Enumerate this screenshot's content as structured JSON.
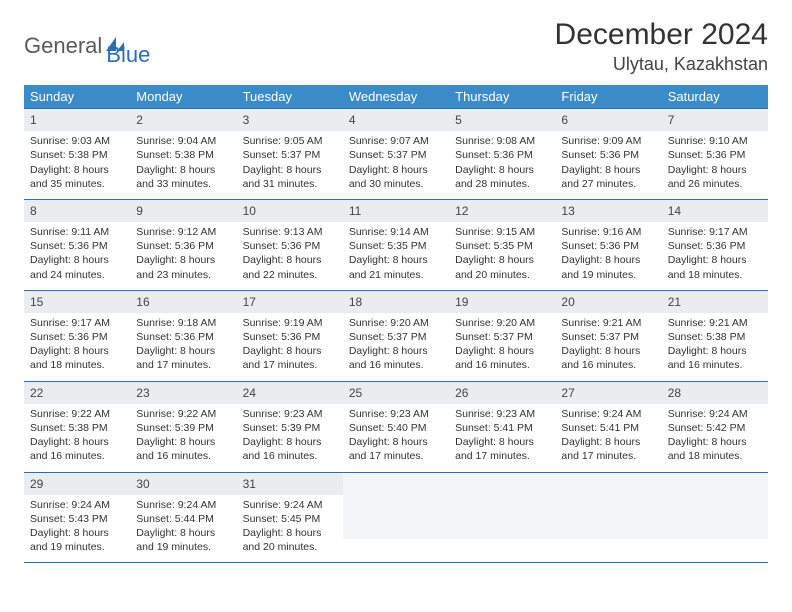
{
  "brand": {
    "part1": "General",
    "part2": "Blue"
  },
  "title": "December 2024",
  "location": "Ulytau, Kazakhstan",
  "colors": {
    "header_bg": "#3b8bc9",
    "header_text": "#ffffff",
    "row_border": "#2a6fb5",
    "daynum_bg": "#e9edf0",
    "page_bg": "#ffffff",
    "body_text": "#333333",
    "logo_gray": "#5a5a5a",
    "logo_blue": "#2a6fb5"
  },
  "weekdays": [
    "Sunday",
    "Monday",
    "Tuesday",
    "Wednesday",
    "Thursday",
    "Friday",
    "Saturday"
  ],
  "days": [
    {
      "n": "1",
      "sunrise": "9:03 AM",
      "sunset": "5:38 PM",
      "daylight": "8 hours and 35 minutes."
    },
    {
      "n": "2",
      "sunrise": "9:04 AM",
      "sunset": "5:38 PM",
      "daylight": "8 hours and 33 minutes."
    },
    {
      "n": "3",
      "sunrise": "9:05 AM",
      "sunset": "5:37 PM",
      "daylight": "8 hours and 31 minutes."
    },
    {
      "n": "4",
      "sunrise": "9:07 AM",
      "sunset": "5:37 PM",
      "daylight": "8 hours and 30 minutes."
    },
    {
      "n": "5",
      "sunrise": "9:08 AM",
      "sunset": "5:36 PM",
      "daylight": "8 hours and 28 minutes."
    },
    {
      "n": "6",
      "sunrise": "9:09 AM",
      "sunset": "5:36 PM",
      "daylight": "8 hours and 27 minutes."
    },
    {
      "n": "7",
      "sunrise": "9:10 AM",
      "sunset": "5:36 PM",
      "daylight": "8 hours and 26 minutes."
    },
    {
      "n": "8",
      "sunrise": "9:11 AM",
      "sunset": "5:36 PM",
      "daylight": "8 hours and 24 minutes."
    },
    {
      "n": "9",
      "sunrise": "9:12 AM",
      "sunset": "5:36 PM",
      "daylight": "8 hours and 23 minutes."
    },
    {
      "n": "10",
      "sunrise": "9:13 AM",
      "sunset": "5:36 PM",
      "daylight": "8 hours and 22 minutes."
    },
    {
      "n": "11",
      "sunrise": "9:14 AM",
      "sunset": "5:35 PM",
      "daylight": "8 hours and 21 minutes."
    },
    {
      "n": "12",
      "sunrise": "9:15 AM",
      "sunset": "5:35 PM",
      "daylight": "8 hours and 20 minutes."
    },
    {
      "n": "13",
      "sunrise": "9:16 AM",
      "sunset": "5:36 PM",
      "daylight": "8 hours and 19 minutes."
    },
    {
      "n": "14",
      "sunrise": "9:17 AM",
      "sunset": "5:36 PM",
      "daylight": "8 hours and 18 minutes."
    },
    {
      "n": "15",
      "sunrise": "9:17 AM",
      "sunset": "5:36 PM",
      "daylight": "8 hours and 18 minutes."
    },
    {
      "n": "16",
      "sunrise": "9:18 AM",
      "sunset": "5:36 PM",
      "daylight": "8 hours and 17 minutes."
    },
    {
      "n": "17",
      "sunrise": "9:19 AM",
      "sunset": "5:36 PM",
      "daylight": "8 hours and 17 minutes."
    },
    {
      "n": "18",
      "sunrise": "9:20 AM",
      "sunset": "5:37 PM",
      "daylight": "8 hours and 16 minutes."
    },
    {
      "n": "19",
      "sunrise": "9:20 AM",
      "sunset": "5:37 PM",
      "daylight": "8 hours and 16 minutes."
    },
    {
      "n": "20",
      "sunrise": "9:21 AM",
      "sunset": "5:37 PM",
      "daylight": "8 hours and 16 minutes."
    },
    {
      "n": "21",
      "sunrise": "9:21 AM",
      "sunset": "5:38 PM",
      "daylight": "8 hours and 16 minutes."
    },
    {
      "n": "22",
      "sunrise": "9:22 AM",
      "sunset": "5:38 PM",
      "daylight": "8 hours and 16 minutes."
    },
    {
      "n": "23",
      "sunrise": "9:22 AM",
      "sunset": "5:39 PM",
      "daylight": "8 hours and 16 minutes."
    },
    {
      "n": "24",
      "sunrise": "9:23 AM",
      "sunset": "5:39 PM",
      "daylight": "8 hours and 16 minutes."
    },
    {
      "n": "25",
      "sunrise": "9:23 AM",
      "sunset": "5:40 PM",
      "daylight": "8 hours and 17 minutes."
    },
    {
      "n": "26",
      "sunrise": "9:23 AM",
      "sunset": "5:41 PM",
      "daylight": "8 hours and 17 minutes."
    },
    {
      "n": "27",
      "sunrise": "9:24 AM",
      "sunset": "5:41 PM",
      "daylight": "8 hours and 17 minutes."
    },
    {
      "n": "28",
      "sunrise": "9:24 AM",
      "sunset": "5:42 PM",
      "daylight": "8 hours and 18 minutes."
    },
    {
      "n": "29",
      "sunrise": "9:24 AM",
      "sunset": "5:43 PM",
      "daylight": "8 hours and 19 minutes."
    },
    {
      "n": "30",
      "sunrise": "9:24 AM",
      "sunset": "5:44 PM",
      "daylight": "8 hours and 19 minutes."
    },
    {
      "n": "31",
      "sunrise": "9:24 AM",
      "sunset": "5:45 PM",
      "daylight": "8 hours and 20 minutes."
    }
  ],
  "labels": {
    "sunrise_prefix": "Sunrise: ",
    "sunset_prefix": "Sunset: ",
    "daylight_prefix": "Daylight: "
  },
  "layout": {
    "columns": 7,
    "rows": 5,
    "start_weekday_index": 0,
    "trailing_empty": 4
  }
}
